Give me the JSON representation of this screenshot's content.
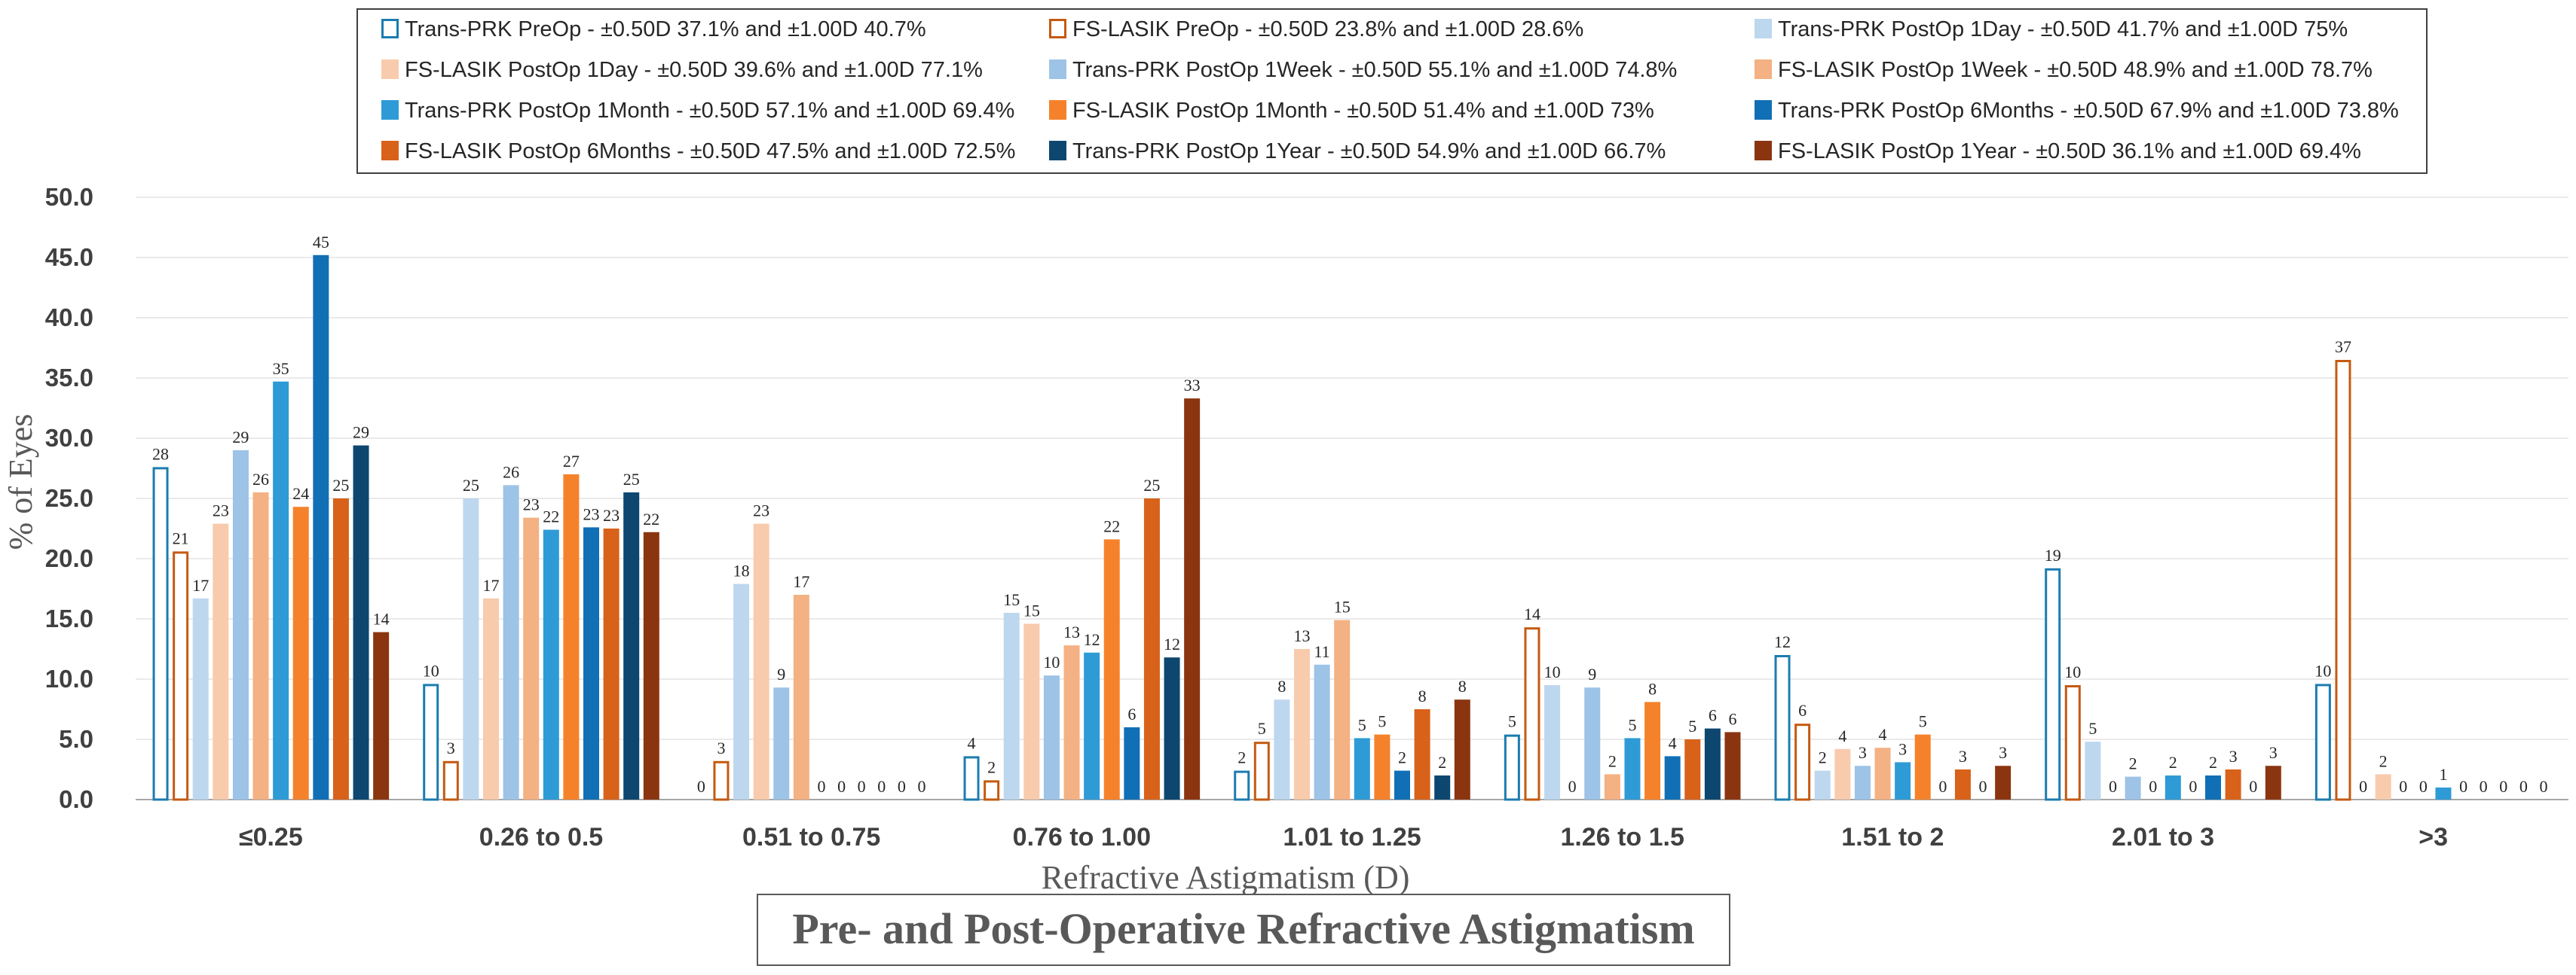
{
  "chart_data": {
    "type": "bar",
    "title": "Pre- and Post-Operative Refractive Astigmatism",
    "xlabel": "Refractive Astigmatism (D)",
    "ylabel": "% of Eyes",
    "ylim": [
      0,
      50
    ],
    "yticks": [
      "0.0",
      "5.0",
      "10.0",
      "15.0",
      "20.0",
      "25.0",
      "30.0",
      "35.0",
      "40.0",
      "45.0",
      "50.0"
    ],
    "grid": true,
    "legend_position": "top",
    "categories": [
      "≤0.25",
      "0.26 to 0.5",
      "0.51 to 0.75",
      "0.76 to 1.00",
      "1.01 to 1.25",
      "1.26 to 1.5",
      "1.51 to 2",
      "2.01 to 3",
      ">3"
    ],
    "series": [
      {
        "name": "Trans-PRK PreOp - ±0.50D 37.1% and ±1.00D 40.7%",
        "color": "#1C7CB0",
        "style": "outline",
        "values": [
          27.6,
          9.6,
          0,
          3.6,
          2.4,
          5.4,
          12.0,
          19.2,
          9.6
        ],
        "labels": [
          "28",
          "10",
          "0",
          "4",
          "2",
          "5",
          "12",
          "19",
          "10"
        ]
      },
      {
        "name": "FS-LASIK PreOp - ±0.50D 23.8% and ±1.00D 28.6%",
        "color": "#C55A11",
        "style": "outline",
        "values": [
          20.6,
          3.2,
          3.2,
          1.6,
          4.8,
          14.3,
          6.3,
          9.5,
          36.5
        ],
        "labels": [
          "21",
          "3",
          "3",
          "2",
          "5",
          "14",
          "6",
          "10",
          "37"
        ]
      },
      {
        "name": "Trans-PRK PostOp 1Day - ±0.50D 41.7% and ±1.00D 75%",
        "color": "#BDD7EE",
        "style": "solid",
        "values": [
          16.7,
          25.0,
          17.9,
          15.5,
          8.3,
          9.5,
          2.4,
          4.8,
          0
        ],
        "labels": [
          "17",
          "25",
          "18",
          "15",
          "8",
          "10",
          "2",
          "5",
          "0"
        ]
      },
      {
        "name": "FS-LASIK PostOp 1Day - ±0.50D 39.6% and ±1.00D 77.1%",
        "color": "#F8CBAD",
        "style": "solid",
        "values": [
          22.9,
          16.7,
          22.9,
          14.6,
          12.5,
          0,
          4.2,
          0,
          2.1
        ],
        "labels": [
          "23",
          "17",
          "23",
          "15",
          "13",
          "0",
          "4",
          "0",
          "2"
        ]
      },
      {
        "name": "Trans-PRK PostOp 1Week - ±0.50D 55.1% and ±1.00D 74.8%",
        "color": "#9DC3E6",
        "style": "solid",
        "values": [
          29.0,
          26.1,
          9.3,
          10.3,
          11.2,
          9.3,
          2.8,
          1.9,
          0
        ],
        "labels": [
          "29",
          "26",
          "9",
          "10",
          "11",
          "9",
          "3",
          "2",
          "0"
        ]
      },
      {
        "name": "FS-LASIK PostOp 1Week - ±0.50D 48.9% and ±1.00D 78.7%",
        "color": "#F4B183",
        "style": "solid",
        "values": [
          25.5,
          23.4,
          17.0,
          12.8,
          14.9,
          2.1,
          4.3,
          0,
          0
        ],
        "labels": [
          "26",
          "23",
          "17",
          "13",
          "15",
          "2",
          "4",
          "0",
          "0"
        ]
      },
      {
        "name": "Trans-PRK PostOp 1Month - ±0.50D 57.1% and ±1.00D 69.4%",
        "color": "#2E9BD6",
        "style": "solid",
        "values": [
          34.7,
          22.4,
          0,
          12.2,
          5.1,
          5.1,
          3.1,
          2.0,
          1.0
        ],
        "labels": [
          "35",
          "22",
          "0",
          "12",
          "5",
          "5",
          "3",
          "2",
          "1"
        ]
      },
      {
        "name": "FS-LASIK PostOp 1Month - ±0.50D 51.4% and ±1.00D 73%",
        "color": "#F5822A",
        "style": "solid",
        "values": [
          24.3,
          27.0,
          0,
          21.6,
          5.4,
          8.1,
          5.4,
          0,
          0
        ],
        "labels": [
          "24",
          "27",
          "0",
          "22",
          "5",
          "8",
          "5",
          "0",
          "0"
        ]
      },
      {
        "name": "Trans-PRK PostOp 6Months - ±0.50D 67.9% and ±1.00D 73.8%",
        "color": "#1170B5",
        "style": "solid",
        "values": [
          45.2,
          22.6,
          0,
          6.0,
          2.4,
          3.6,
          0,
          2.0,
          0
        ],
        "labels": [
          "45",
          "23",
          "0",
          "6",
          "2",
          "4",
          "0",
          "2",
          "0"
        ]
      },
      {
        "name": "FS-LASIK PostOp 6Months - ±0.50D 47.5% and ±1.00D 72.5%",
        "color": "#D8621A",
        "style": "solid",
        "values": [
          25.0,
          22.5,
          0,
          25.0,
          7.5,
          5.0,
          2.5,
          2.5,
          0
        ],
        "labels": [
          "25",
          "23",
          "0",
          "25",
          "8",
          "5",
          "3",
          "3",
          "0"
        ]
      },
      {
        "name": "Trans-PRK PostOp 1Year - ±0.50D 54.9% and ±1.00D 66.7%",
        "color": "#0D4770",
        "style": "solid",
        "values": [
          29.4,
          25.5,
          0,
          11.8,
          2.0,
          5.9,
          0,
          0,
          0
        ],
        "labels": [
          "29",
          "25",
          "0",
          "12",
          "2",
          "6",
          "0",
          "0",
          "0"
        ]
      },
      {
        "name": "FS-LASIK PostOp 1Year - ±0.50D 36.1% and ±1.00D 69.4%",
        "color": "#8B3510",
        "style": "solid",
        "values": [
          13.9,
          22.2,
          0,
          33.3,
          8.3,
          5.6,
          2.8,
          2.8,
          0
        ],
        "labels": [
          "14",
          "22",
          "0",
          "33",
          "8",
          "6",
          "3",
          "3",
          "0"
        ]
      }
    ]
  }
}
